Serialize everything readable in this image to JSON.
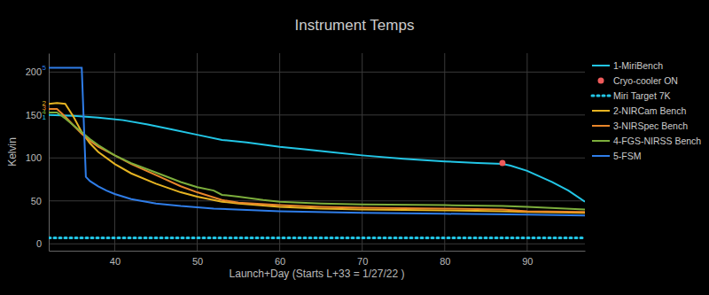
{
  "chart_data": {
    "type": "line",
    "title": "Instrument Temps",
    "x_label": "Launch+Day (Starts L+33 = 1/27/22 )",
    "y_label": "Kelvin",
    "xlim": [
      32,
      97
    ],
    "xticks": [
      40,
      50,
      60,
      70,
      80,
      90
    ],
    "ylim": [
      -8,
      222
    ],
    "yticks": [
      0,
      50,
      100,
      150,
      200
    ],
    "grid": true,
    "legend": "right",
    "series": [
      {
        "name": "1-MiriBench",
        "color": "#22c6e6",
        "type": "line",
        "x": [
          32,
          35,
          38,
          41,
          44,
          47,
          50,
          53,
          56,
          60,
          63,
          66,
          70,
          75,
          80,
          84,
          87,
          88,
          90,
          93,
          95,
          97
        ],
        "values": [
          150,
          149,
          147,
          144,
          139,
          133,
          127,
          121,
          118,
          113,
          110,
          107,
          103,
          99,
          96,
          94,
          93,
          91,
          85,
          72,
          62,
          49
        ]
      },
      {
        "name": "Cryo-cooler ON",
        "color": "#ef5b5b",
        "type": "scatter",
        "marker": "circle",
        "x": [
          87
        ],
        "values": [
          94
        ]
      },
      {
        "name": "Miri Target 7K",
        "color": "#22c6e6",
        "type": "line",
        "line_style": "dotted",
        "x": [
          32,
          97
        ],
        "values": [
          7,
          7
        ]
      },
      {
        "name": "2-NIRCam Bench",
        "color": "#e6b422",
        "type": "line",
        "x": [
          32,
          33,
          34,
          35,
          36,
          37,
          38,
          40,
          42,
          45,
          48,
          50,
          53,
          55,
          60,
          65,
          70,
          80,
          87,
          90,
          97
        ],
        "values": [
          163,
          164,
          163,
          148,
          130,
          117,
          107,
          93,
          82,
          70,
          60,
          55,
          49,
          47,
          43,
          41,
          40,
          39,
          38,
          37,
          36
        ]
      },
      {
        "name": "3-NIRSpec Bench",
        "color": "#e8862a",
        "type": "line",
        "x": [
          32,
          33,
          34,
          35,
          36,
          37,
          38,
          40,
          42,
          45,
          48,
          50,
          53,
          55,
          60,
          65,
          70,
          80,
          87,
          90,
          97
        ],
        "values": [
          157,
          157,
          148,
          138,
          128,
          120,
          113,
          103,
          93,
          80,
          67,
          60,
          51,
          48,
          45,
          43,
          42,
          41,
          40,
          38,
          37
        ]
      },
      {
        "name": "4-FGS-NIRSS Bench",
        "color": "#7cae3c",
        "type": "line",
        "x": [
          32,
          33,
          34,
          35,
          36,
          37,
          38,
          40,
          42,
          45,
          48,
          50,
          52,
          53,
          55,
          58,
          60,
          65,
          70,
          80,
          87,
          90,
          97
        ],
        "values": [
          153,
          153,
          146,
          138,
          130,
          122,
          115,
          103,
          94,
          83,
          72,
          66,
          62,
          57,
          55,
          51,
          49,
          47,
          46,
          45,
          44,
          43,
          40
        ]
      },
      {
        "name": "5-FSM",
        "color": "#2f7de8",
        "type": "line",
        "x": [
          32,
          36,
          36.5,
          37,
          38,
          39,
          40,
          42,
          45,
          48,
          52,
          60,
          70,
          80,
          90,
          97
        ],
        "values": [
          205,
          205,
          78,
          73,
          67,
          62,
          58,
          52,
          47,
          44,
          41,
          38,
          36,
          35,
          34,
          33
        ]
      }
    ],
    "annotations": [
      {
        "text": "5",
        "x": 32,
        "y": 205,
        "color": "#2f7de8"
      },
      {
        "text": "2",
        "x": 32,
        "y": 164,
        "color": "#e6b422"
      },
      {
        "text": "3",
        "x": 32,
        "y": 159,
        "color": "#e8862a"
      },
      {
        "text": "4",
        "x": 32,
        "y": 154,
        "color": "#7cae3c"
      },
      {
        "text": "1",
        "x": 32,
        "y": 148,
        "color": "#22c6e6"
      }
    ]
  }
}
